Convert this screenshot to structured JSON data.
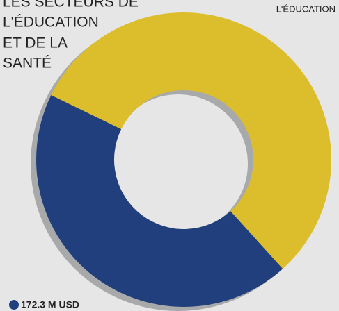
{
  "chart_data": {
    "type": "donut",
    "title_lines": [
      "LES SECTEURS DE",
      "L'ÉDUCATION",
      "ET DE LA",
      "SANTÉ"
    ],
    "categories": [
      "L'ÉDUCATION",
      null
    ],
    "values": [
      220,
      172.3
    ],
    "value_labels": [
      null,
      "172.3 M USD"
    ],
    "colors": [
      "#dcbd2c",
      "#213f7c"
    ]
  }
}
